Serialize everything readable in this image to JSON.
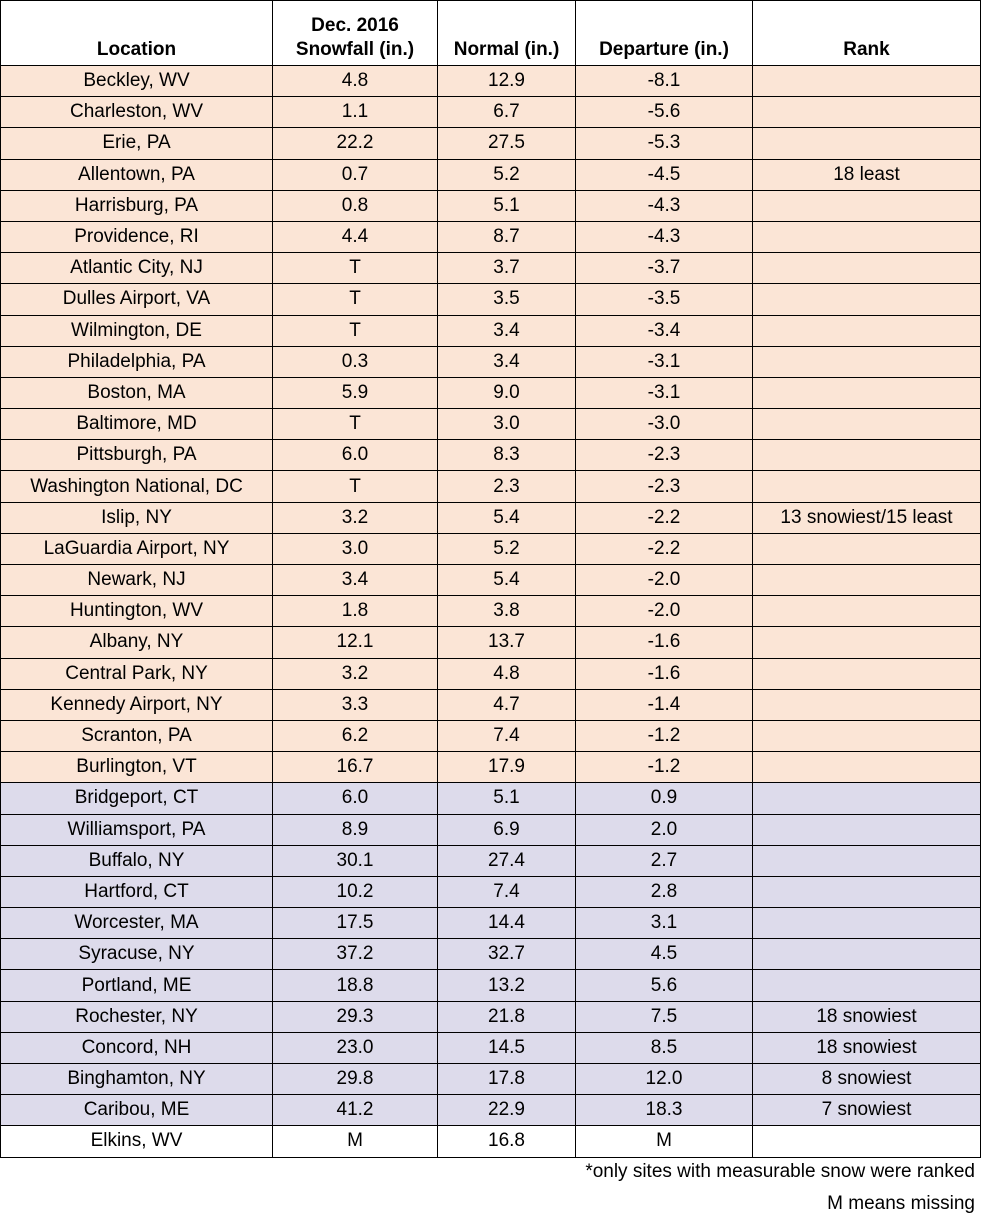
{
  "table": {
    "header": [
      "Location",
      "Dec. 2016 Snowfall (in.)",
      "Normal (in.)",
      "Departure (in.)",
      "Rank"
    ],
    "groups": [
      {
        "color": "#fbe5d6",
        "rows": [
          [
            "Beckley, WV",
            "4.8",
            "12.9",
            "-8.1",
            ""
          ],
          [
            "Charleston, WV",
            "1.1",
            "6.7",
            "-5.6",
            ""
          ],
          [
            "Erie, PA",
            "22.2",
            "27.5",
            "-5.3",
            ""
          ],
          [
            "Allentown, PA",
            "0.7",
            "5.2",
            "-4.5",
            "18 least"
          ],
          [
            "Harrisburg, PA",
            "0.8",
            "5.1",
            "-4.3",
            ""
          ],
          [
            "Providence, RI",
            "4.4",
            "8.7",
            "-4.3",
            ""
          ],
          [
            "Atlantic City, NJ",
            "T",
            "3.7",
            "-3.7",
            ""
          ],
          [
            "Dulles Airport, VA",
            "T",
            "3.5",
            "-3.5",
            ""
          ],
          [
            "Wilmington, DE",
            "T",
            "3.4",
            "-3.4",
            ""
          ],
          [
            "Philadelphia, PA",
            "0.3",
            "3.4",
            "-3.1",
            ""
          ],
          [
            "Boston, MA",
            "5.9",
            "9.0",
            "-3.1",
            ""
          ],
          [
            "Baltimore, MD",
            "T",
            "3.0",
            "-3.0",
            ""
          ],
          [
            "Pittsburgh, PA",
            "6.0",
            "8.3",
            "-2.3",
            ""
          ],
          [
            "Washington National, DC",
            "T",
            "2.3",
            "-2.3",
            ""
          ],
          [
            "Islip, NY",
            "3.2",
            "5.4",
            "-2.2",
            "13 snowiest/15 least"
          ],
          [
            "LaGuardia Airport, NY",
            "3.0",
            "5.2",
            "-2.2",
            ""
          ],
          [
            "Newark, NJ",
            "3.4",
            "5.4",
            "-2.0",
            ""
          ],
          [
            "Huntington, WV",
            "1.8",
            "3.8",
            "-2.0",
            ""
          ],
          [
            "Albany, NY",
            "12.1",
            "13.7",
            "-1.6",
            ""
          ],
          [
            "Central Park, NY",
            "3.2",
            "4.8",
            "-1.6",
            ""
          ],
          [
            "Kennedy Airport, NY",
            "3.3",
            "4.7",
            "-1.4",
            ""
          ],
          [
            "Scranton, PA",
            "6.2",
            "7.4",
            "-1.2",
            ""
          ],
          [
            "Burlington, VT",
            "16.7",
            "17.9",
            "-1.2",
            ""
          ]
        ]
      },
      {
        "color": "#dddbeb",
        "rows": [
          [
            "Bridgeport, CT",
            "6.0",
            "5.1",
            "0.9",
            ""
          ],
          [
            "Williamsport, PA",
            "8.9",
            "6.9",
            "2.0",
            ""
          ],
          [
            "Buffalo, NY",
            "30.1",
            "27.4",
            "2.7",
            ""
          ],
          [
            "Hartford, CT",
            "10.2",
            "7.4",
            "2.8",
            ""
          ],
          [
            "Worcester, MA",
            "17.5",
            "14.4",
            "3.1",
            ""
          ],
          [
            "Syracuse, NY",
            "37.2",
            "32.7",
            "4.5",
            ""
          ],
          [
            "Portland, ME",
            "18.8",
            "13.2",
            "5.6",
            ""
          ],
          [
            "Rochester, NY",
            "29.3",
            "21.8",
            "7.5",
            "18 snowiest"
          ],
          [
            "Concord, NH",
            "23.0",
            "14.5",
            "8.5",
            "18 snowiest"
          ],
          [
            "Binghamton, NY",
            "29.8",
            "17.8",
            "12.0",
            "8 snowiest"
          ],
          [
            "Caribou, ME",
            "41.2",
            "22.9",
            "18.3",
            "7 snowiest"
          ]
        ]
      },
      {
        "color": "#ffffff",
        "rows": [
          [
            "Elkins, WV",
            "M",
            "16.8",
            "M",
            ""
          ]
        ]
      }
    ]
  },
  "footnotes": [
    "*only sites with measurable snow were ranked",
    "M means missing"
  ]
}
